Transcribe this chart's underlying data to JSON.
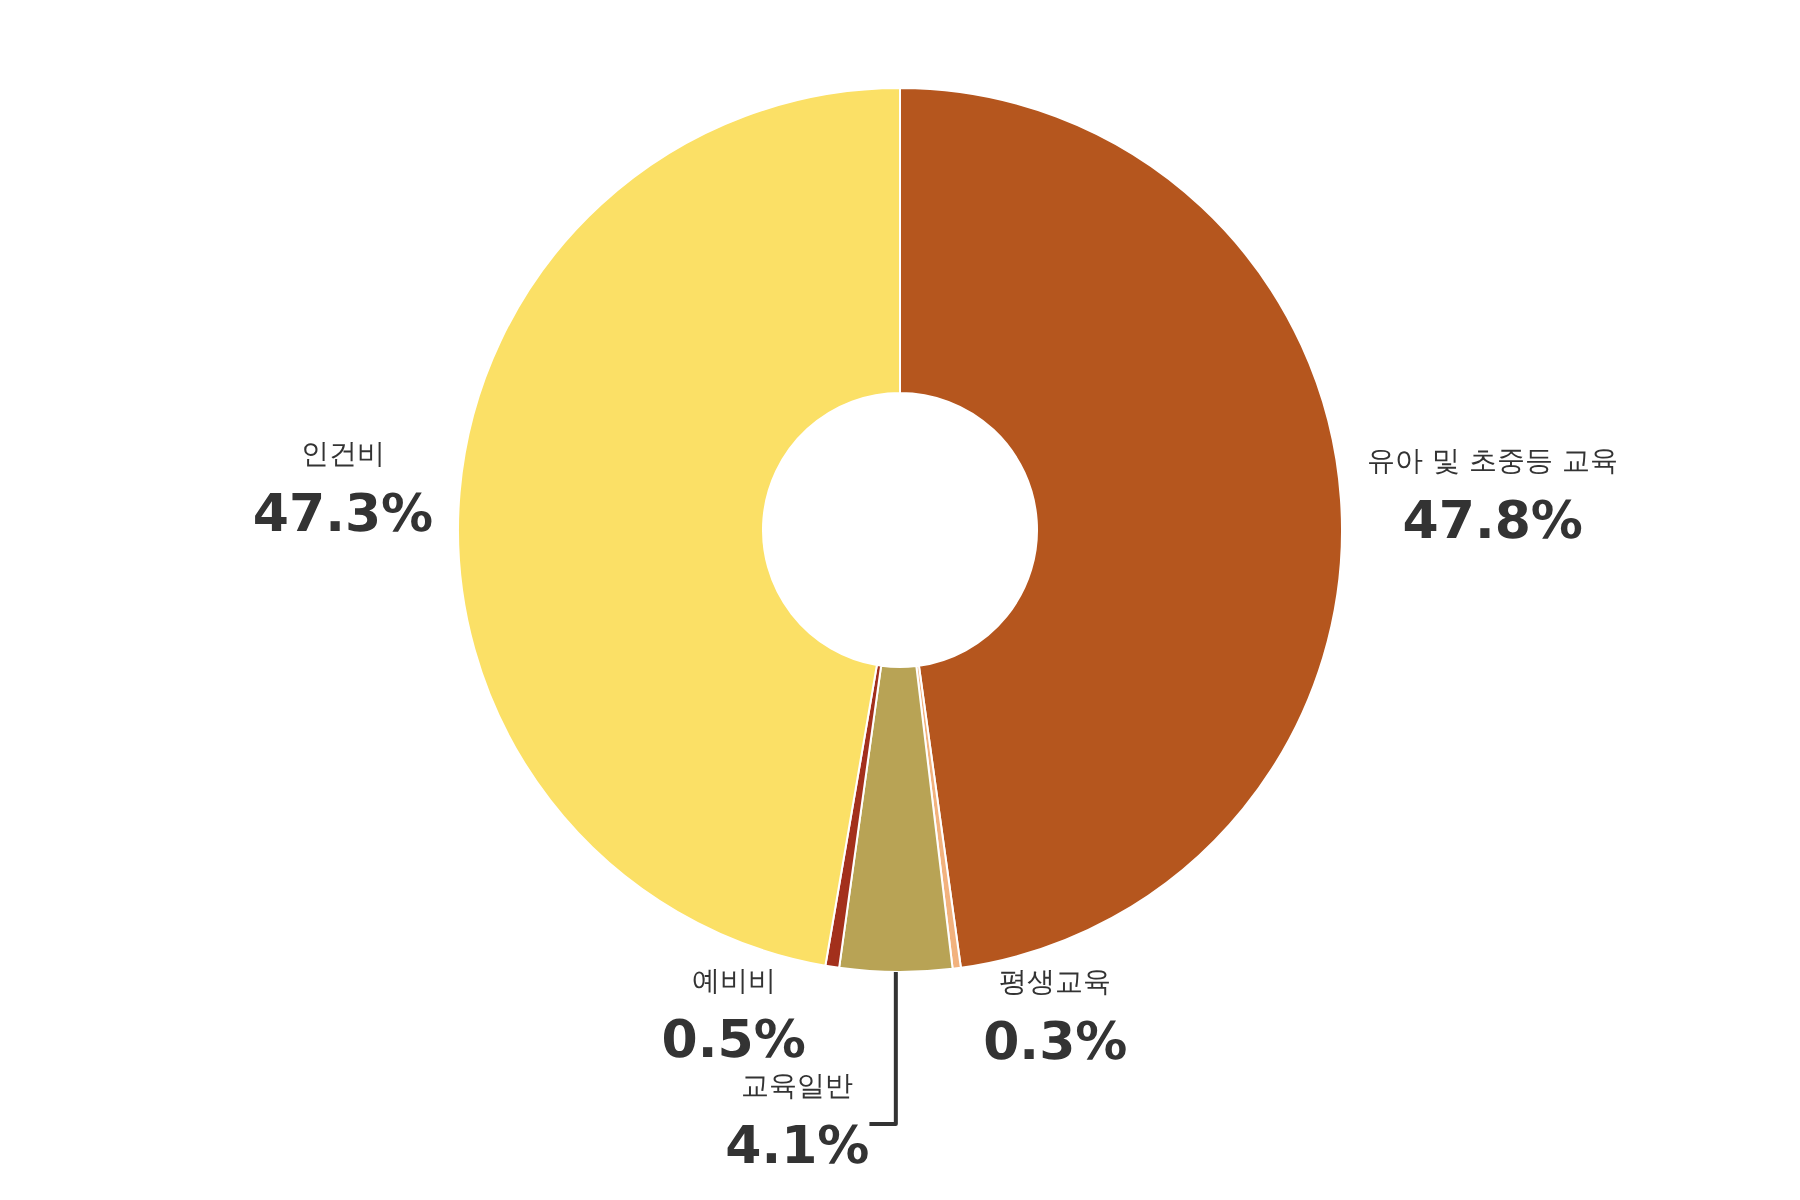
{
  "chart_data": {
    "type": "donut",
    "categories": [
      "유아 및 초중등 교육",
      "평생교육",
      "교육일반",
      "예비비",
      "인건비"
    ],
    "values": [
      47.8,
      0.3,
      4.1,
      0.5,
      47.3
    ],
    "value_labels": [
      "47.8%",
      "0.3%",
      "4.1%",
      "0.5%",
      "47.3%"
    ],
    "colors": [
      "#b5561e",
      "#f2b27e",
      "#b8a355",
      "#a3301c",
      "#fbe066"
    ],
    "legend": false
  }
}
